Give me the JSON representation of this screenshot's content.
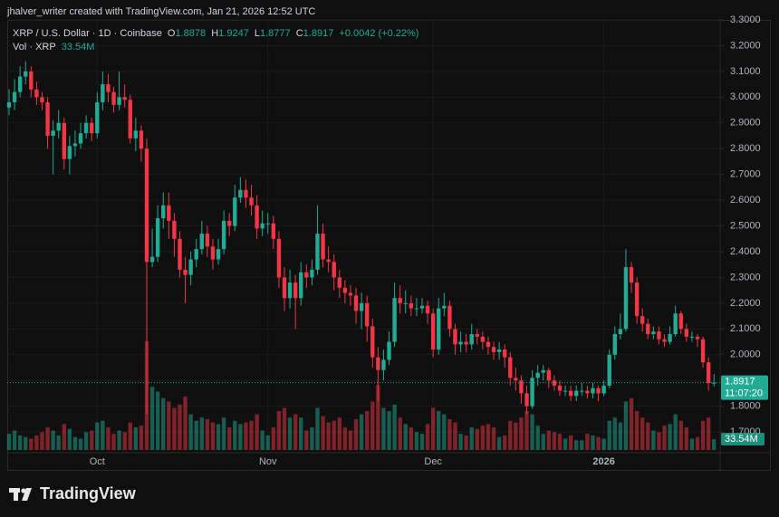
{
  "chart_data": {
    "type": "candlestick",
    "header": "jhalver_writer created with TradingView.com, Jan 21, 2026 12:52 UTC",
    "title": "XRP / U.S. Dollar · 1D · Coinbase",
    "ohlc_labels": [
      "O",
      "H",
      "L",
      "C"
    ],
    "change": "+0.0042 (+0.22%)",
    "countdown": "11:07:20",
    "brand": "TradingView",
    "up_color": "#22ab94",
    "down_color": "#f23645",
    "grid": true,
    "categories": [
      null,
      null,
      null,
      null,
      null,
      null,
      null,
      null,
      null,
      null,
      null,
      null,
      null,
      null,
      null,
      null,
      "Oct",
      null,
      null,
      null,
      null,
      null,
      null,
      null,
      null,
      null,
      null,
      null,
      null,
      null,
      null,
      null,
      null,
      null,
      null,
      null,
      null,
      null,
      null,
      null,
      null,
      null,
      null,
      null,
      null,
      null,
      null,
      "Nov",
      null,
      null,
      null,
      null,
      null,
      null,
      null,
      null,
      null,
      null,
      null,
      null,
      null,
      null,
      null,
      null,
      null,
      null,
      null,
      null,
      null,
      null,
      null,
      null,
      null,
      null,
      null,
      null,
      null,
      "Dec",
      null,
      null,
      null,
      null,
      null,
      null,
      null,
      null,
      null,
      null,
      null,
      null,
      null,
      null,
      null,
      null,
      null,
      null,
      null,
      null,
      null,
      null,
      null,
      null,
      null,
      null,
      null,
      null,
      null,
      null,
      "2026",
      null,
      null,
      null,
      null,
      null,
      null,
      null,
      null,
      null,
      null,
      null,
      null,
      null,
      null,
      null,
      null,
      null,
      null,
      null,
      null
    ],
    "ohlc": {
      "open": [
        2.96,
        2.98,
        3.02,
        3.08,
        3.1,
        3.03,
        3.0,
        2.98,
        2.85,
        2.87,
        2.9,
        2.76,
        2.81,
        2.82,
        2.86,
        2.9,
        2.86,
        2.98,
        3.05,
        3.02,
        2.97,
        3.0,
        2.99,
        2.84,
        2.87,
        2.8,
        2.36,
        2.38,
        2.53,
        2.58,
        2.52,
        2.45,
        2.33,
        2.31,
        2.37,
        2.41,
        2.47,
        2.42,
        2.37,
        2.41,
        2.52,
        2.5,
        2.61,
        2.64,
        2.61,
        2.58,
        2.49,
        2.51,
        2.51,
        2.45,
        2.3,
        2.22,
        2.28,
        2.22,
        2.32,
        2.3,
        2.33,
        2.47,
        2.37,
        2.36,
        2.3,
        2.26,
        2.24,
        2.23,
        2.17,
        2.2,
        2.11,
        1.99,
        1.94,
        1.98,
        2.05,
        2.22,
        2.2,
        2.2,
        2.18,
        2.18,
        2.19,
        2.16,
        2.02,
        2.18,
        2.19,
        2.1,
        2.04,
        2.05,
        2.04,
        2.08,
        2.07,
        2.05,
        2.03,
        2.01,
        2.02,
        1.99,
        1.91,
        1.9,
        1.85,
        1.8,
        1.91,
        1.93,
        1.94,
        1.9,
        1.88,
        1.86,
        1.86,
        1.84,
        1.86,
        1.86,
        1.85,
        1.87,
        1.85,
        1.88,
        2.0,
        2.08,
        2.1,
        2.34,
        2.28,
        2.15,
        2.12,
        2.08,
        2.09,
        2.06,
        2.05,
        2.08,
        2.16,
        2.1,
        2.07,
        2.07,
        2.06,
        1.97,
        1.8878
      ],
      "high": [
        3.03,
        3.07,
        3.12,
        3.14,
        3.12,
        3.06,
        3.02,
        3.0,
        2.91,
        2.95,
        2.92,
        2.85,
        2.87,
        2.9,
        2.93,
        2.92,
        3.02,
        3.1,
        3.09,
        3.04,
        3.1,
        3.05,
        3.01,
        2.92,
        2.89,
        2.84,
        2.49,
        2.58,
        2.63,
        2.63,
        2.55,
        2.48,
        2.38,
        2.4,
        2.45,
        2.52,
        2.5,
        2.45,
        2.45,
        2.56,
        2.55,
        2.66,
        2.69,
        2.68,
        2.66,
        2.62,
        2.56,
        2.55,
        2.54,
        2.48,
        2.34,
        2.33,
        2.31,
        2.36,
        2.35,
        2.37,
        2.58,
        2.51,
        2.42,
        2.39,
        2.33,
        2.29,
        2.27,
        2.26,
        2.24,
        2.23,
        2.14,
        2.03,
        2.02,
        2.09,
        2.28,
        2.27,
        2.25,
        2.23,
        2.22,
        2.22,
        2.21,
        2.18,
        2.22,
        2.24,
        2.21,
        2.12,
        2.09,
        2.08,
        2.12,
        2.1,
        2.09,
        2.07,
        2.05,
        2.05,
        2.04,
        2.01,
        1.95,
        1.92,
        1.88,
        1.94,
        1.96,
        1.96,
        1.95,
        1.92,
        1.9,
        1.88,
        1.88,
        1.88,
        1.89,
        1.88,
        1.89,
        1.88,
        1.9,
        2.02,
        2.11,
        2.16,
        2.41,
        2.36,
        2.3,
        2.18,
        2.14,
        2.11,
        2.11,
        2.08,
        2.11,
        2.19,
        2.17,
        2.12,
        2.09,
        2.08,
        2.07,
        1.99,
        1.9247
      ],
      "low": [
        2.93,
        2.95,
        3.0,
        3.05,
        3.0,
        2.97,
        2.95,
        2.8,
        2.7,
        2.84,
        2.72,
        2.7,
        2.77,
        2.8,
        2.84,
        2.83,
        2.84,
        2.95,
        2.98,
        2.94,
        2.95,
        2.96,
        2.82,
        2.79,
        2.75,
        1.77,
        2.34,
        2.36,
        2.49,
        2.45,
        2.38,
        2.3,
        2.2,
        2.27,
        2.34,
        2.39,
        2.38,
        2.33,
        2.35,
        2.39,
        2.46,
        2.48,
        2.59,
        2.57,
        2.54,
        2.45,
        2.46,
        2.47,
        2.41,
        2.26,
        2.17,
        2.18,
        2.1,
        2.19,
        2.26,
        2.27,
        2.31,
        2.34,
        2.32,
        2.25,
        2.22,
        2.2,
        2.19,
        2.12,
        2.1,
        2.05,
        1.95,
        1.82,
        1.9,
        1.96,
        2.03,
        2.16,
        2.16,
        2.15,
        2.15,
        2.16,
        2.12,
        1.99,
        2.0,
        2.15,
        2.07,
        2.0,
        2.01,
        2.01,
        2.02,
        2.04,
        2.02,
        2.0,
        1.98,
        1.98,
        1.95,
        1.88,
        1.86,
        1.81,
        1.77,
        1.79,
        1.88,
        1.9,
        1.87,
        1.86,
        1.84,
        1.84,
        1.82,
        1.82,
        1.84,
        1.83,
        1.83,
        1.82,
        1.84,
        1.87,
        1.98,
        2.06,
        2.09,
        2.24,
        2.12,
        2.09,
        2.06,
        2.06,
        2.04,
        2.03,
        2.04,
        2.07,
        2.08,
        2.05,
        2.05,
        2.03,
        1.95,
        1.86,
        1.8777
      ],
      "close": [
        2.98,
        3.02,
        3.08,
        3.1,
        3.03,
        3.0,
        2.98,
        2.85,
        2.87,
        2.9,
        2.76,
        2.81,
        2.82,
        2.86,
        2.9,
        2.86,
        2.98,
        3.05,
        3.02,
        2.97,
        3.0,
        2.99,
        2.84,
        2.87,
        2.8,
        2.36,
        2.38,
        2.53,
        2.58,
        2.52,
        2.45,
        2.33,
        2.31,
        2.37,
        2.41,
        2.47,
        2.42,
        2.37,
        2.41,
        2.52,
        2.5,
        2.61,
        2.64,
        2.61,
        2.58,
        2.49,
        2.51,
        2.51,
        2.45,
        2.3,
        2.22,
        2.28,
        2.22,
        2.32,
        2.3,
        2.33,
        2.47,
        2.37,
        2.36,
        2.3,
        2.26,
        2.24,
        2.23,
        2.17,
        2.2,
        2.11,
        1.99,
        1.94,
        1.98,
        2.05,
        2.22,
        2.2,
        2.2,
        2.18,
        2.18,
        2.19,
        2.16,
        2.02,
        2.18,
        2.19,
        2.1,
        2.04,
        2.05,
        2.04,
        2.08,
        2.07,
        2.05,
        2.03,
        2.01,
        2.02,
        1.99,
        1.91,
        1.9,
        1.85,
        1.8,
        1.91,
        1.93,
        1.94,
        1.9,
        1.88,
        1.86,
        1.86,
        1.84,
        1.86,
        1.86,
        1.85,
        1.87,
        1.85,
        1.88,
        2.0,
        2.08,
        2.1,
        2.34,
        2.28,
        2.15,
        2.12,
        2.08,
        2.09,
        2.06,
        2.05,
        2.08,
        2.16,
        2.1,
        2.07,
        2.07,
        2.06,
        1.97,
        1.89,
        1.8917
      ]
    },
    "volume": {
      "name": "Vol · XRP",
      "last_label": "33.54M",
      "values": [
        50,
        60,
        45,
        40,
        35,
        45,
        55,
        70,
        60,
        45,
        80,
        65,
        40,
        35,
        55,
        60,
        85,
        90,
        70,
        50,
        60,
        55,
        85,
        70,
        75,
        335,
        195,
        180,
        160,
        150,
        130,
        140,
        165,
        110,
        90,
        100,
        95,
        85,
        80,
        100,
        70,
        90,
        80,
        85,
        90,
        110,
        60,
        45,
        70,
        120,
        130,
        100,
        110,
        100,
        60,
        70,
        130,
        105,
        85,
        90,
        100,
        70,
        60,
        95,
        110,
        120,
        150,
        200,
        130,
        120,
        140,
        100,
        80,
        70,
        55,
        50,
        80,
        130,
        120,
        110,
        95,
        85,
        50,
        45,
        70,
        65,
        75,
        80,
        70,
        40,
        45,
        90,
        85,
        100,
        120,
        110,
        75,
        50,
        60,
        55,
        50,
        35,
        45,
        30,
        30,
        50,
        45,
        40,
        35,
        90,
        100,
        85,
        150,
        160,
        120,
        100,
        85,
        60,
        55,
        75,
        80,
        110,
        90,
        70,
        35,
        40,
        90,
        100,
        33.54
      ]
    },
    "ylim": [
      1.63,
      3.3
    ],
    "yticks": [
      {
        "value": 1.7,
        "label": "1.7000"
      },
      {
        "value": 1.8,
        "label": "1.8000"
      },
      {
        "value": 1.9,
        "label": "1.9000"
      },
      {
        "value": 2.0,
        "label": "2.0000"
      },
      {
        "value": 2.1,
        "label": "2.1000"
      },
      {
        "value": 2.2,
        "label": "2.2000"
      },
      {
        "value": 2.3,
        "label": "2.3000"
      },
      {
        "value": 2.4,
        "label": "2.4000"
      },
      {
        "value": 2.5,
        "label": "2.5000"
      },
      {
        "value": 2.6,
        "label": "2.6000"
      },
      {
        "value": 2.7,
        "label": "2.7000"
      },
      {
        "value": 2.8,
        "label": "2.8000"
      },
      {
        "value": 2.9,
        "label": "2.9000"
      },
      {
        "value": 3.0,
        "label": "3.0000"
      },
      {
        "value": 3.1,
        "label": "3.1000"
      },
      {
        "value": 3.2,
        "label": "3.2000"
      },
      {
        "value": 3.3,
        "label": "3.3000"
      }
    ]
  }
}
